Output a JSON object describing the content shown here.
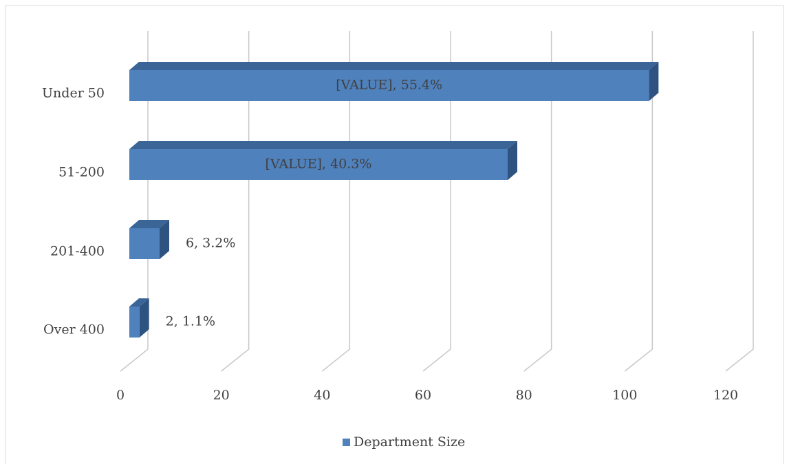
{
  "chart_data": {
    "type": "bar",
    "orientation": "horizontal",
    "categories": [
      "Under 50",
      "51-200",
      "201-400",
      "Over 400"
    ],
    "series": [
      {
        "name": "Department Size",
        "color": "#4f81bd",
        "values": [
          103,
          75,
          6,
          2
        ],
        "value_labels": [
          "[VALUE], 55.4%",
          "[VALUE], 40.3%",
          "6, 3.2%",
          "2, 1.1%"
        ]
      }
    ],
    "xlim": [
      0,
      120
    ],
    "xticks": [
      0,
      20,
      40,
      60,
      80,
      100,
      120
    ],
    "grid": true,
    "legend": "bottom"
  }
}
